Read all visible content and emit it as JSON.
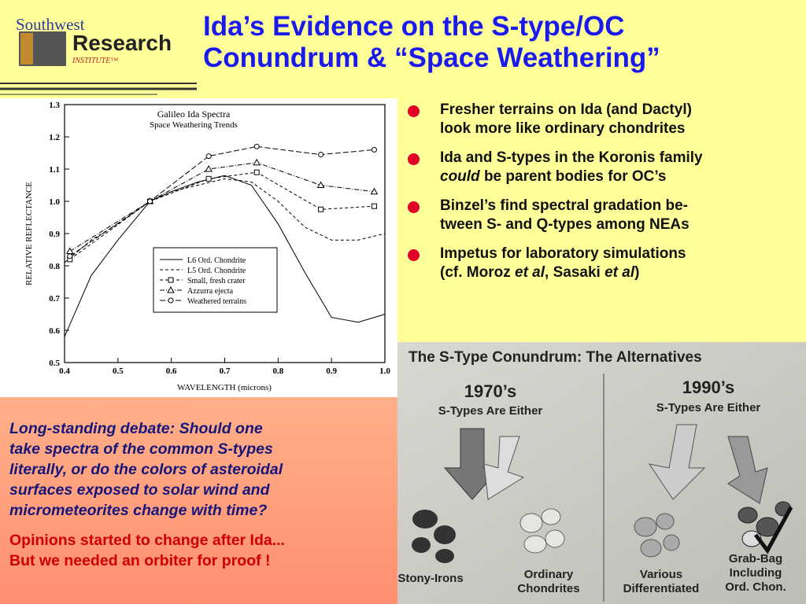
{
  "logo": {
    "line1": "Southwest",
    "line2": "Research",
    "line3": "INSTITUTE™"
  },
  "header": {
    "title_lines": [
      "Ida’s Evidence on the S-type/OC",
      "Conundrum & “Space Weathering”"
    ]
  },
  "bullets": [
    [
      [
        "Fresher terrains on Ida (and Dactyl)"
      ],
      [
        "look more like ordinary chondrites"
      ]
    ],
    [
      [
        "Ida and S-types in the Koronis family"
      ],
      [
        "could",
        " be parent bodies for OC’s"
      ]
    ],
    [
      [
        "Binzel’s find spectral gradation be-"
      ],
      [
        "tween S- and Q-types among NEAs"
      ]
    ],
    [
      [
        "Impetus for laboratory simulations"
      ],
      [
        "(cf. Moroz ",
        "et al",
        ", Sasaki ",
        "et al",
        ")"
      ]
    ]
  ],
  "callout": {
    "question_lines": [
      "Long-standing debate:  Should one",
      "take spectra of the common S-types",
      "literally, or do the colors of asteroidal",
      "surfaces exposed to solar wind and",
      "micrometeorites change with time?"
    ],
    "conclusion_lines": [
      "Opinions started to change after Ida...",
      "But we needed an orbiter for proof !"
    ]
  },
  "photo": {
    "title": "The S-Type Conundrum: The Alternatives",
    "left_era": "1970’s",
    "left_sub": "S-Types Are Either",
    "right_era": "1990’s",
    "right_sub": "S-Types Are Either",
    "labels": [
      [
        "Stony-Irons"
      ],
      [
        "Ordinary",
        "Chondrites"
      ],
      [
        "Various",
        "Differentiated"
      ],
      [
        "Grab-Bag",
        "Including",
        "Ord. Chon."
      ]
    ]
  },
  "chart_data": {
    "type": "line",
    "title": "Galileo Ida Spectra",
    "subtitle": "Space Weathering Trends",
    "x_label": "WAVELENGTH (microns)",
    "y_label": "RELATIVE REFLECTANCE",
    "xlim": [
      0.4,
      1.0
    ],
    "ylim": [
      0.5,
      1.3
    ],
    "xticks": [
      0.4,
      0.5,
      0.6,
      0.7,
      0.8,
      0.9,
      {
        "value": 1.0,
        "label": "1.0"
      }
    ],
    "yticks": [
      0.5,
      0.6,
      0.7,
      0.8,
      0.9,
      {
        "value": 1.0,
        "label": "1.0"
      },
      1.1,
      1.2,
      1.3
    ],
    "series": [
      {
        "name": "L6 Ord. Chondrite",
        "color": "#000000",
        "dash": "solid",
        "marker": "none",
        "x": [
          0.4,
          0.45,
          0.5,
          0.56,
          0.6,
          0.65,
          0.7,
          0.75,
          0.8,
          0.85,
          0.9,
          0.95,
          1.0
        ],
        "values": [
          0.58,
          0.77,
          0.88,
          1.0,
          1.03,
          1.06,
          1.08,
          1.05,
          0.93,
          0.78,
          0.64,
          0.625,
          0.65
        ]
      },
      {
        "name": "L5 Ord. Chondrite",
        "color": "#000000",
        "dash": "dashed",
        "marker": "none",
        "x": [
          0.4,
          0.45,
          0.5,
          0.56,
          0.6,
          0.7,
          0.75,
          0.8,
          0.85,
          0.9,
          0.95,
          1.0
        ],
        "values": [
          0.81,
          0.88,
          0.93,
          1.0,
          1.03,
          1.07,
          1.06,
          1.0,
          0.92,
          0.88,
          0.88,
          0.9
        ]
      },
      {
        "name": "Small, fresh crater",
        "color": "#000000",
        "dash": "dashed",
        "marker": "square",
        "x": [
          0.41,
          0.56,
          0.67,
          0.76,
          0.88,
          0.98
        ],
        "values": [
          0.82,
          1.0,
          1.07,
          1.09,
          0.975,
          0.985
        ]
      },
      {
        "name": "Azzurra ejecta",
        "color": "#000000",
        "dash": "dashdot",
        "marker": "triangle",
        "x": [
          0.41,
          0.56,
          0.67,
          0.76,
          0.88,
          0.98
        ],
        "values": [
          0.845,
          1.0,
          1.1,
          1.12,
          1.05,
          1.03
        ]
      },
      {
        "name": "Weathered terrains",
        "color": "#000000",
        "dash": "longdash",
        "marker": "circle",
        "x": [
          0.41,
          0.56,
          0.67,
          0.76,
          0.88,
          0.98
        ],
        "values": [
          0.83,
          1.0,
          1.14,
          1.17,
          1.145,
          1.16
        ]
      }
    ]
  }
}
